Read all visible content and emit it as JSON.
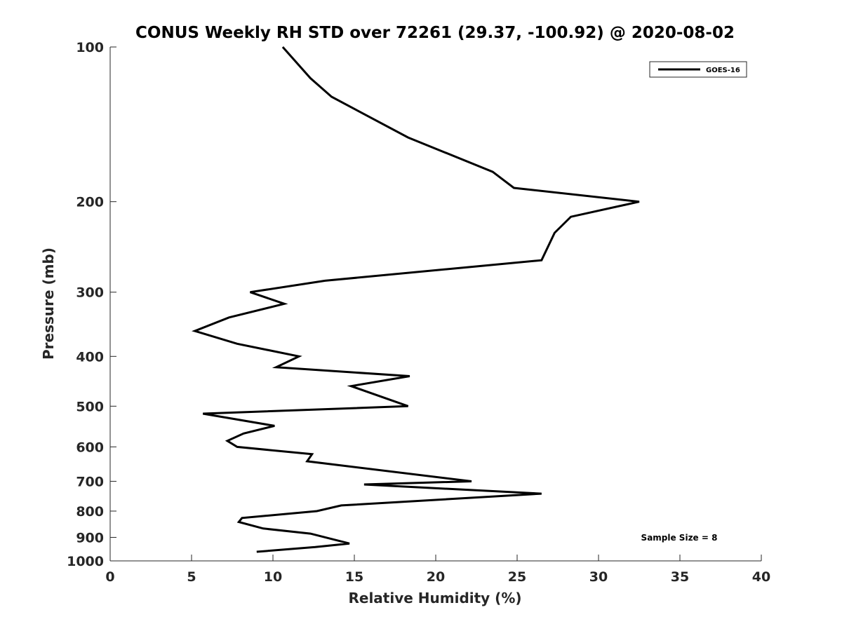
{
  "chart_data": {
    "type": "line",
    "title": "CONUS Weekly RH STD over 72261 (29.37, -100.92) @ 2020-08-02",
    "xlabel": "Relative Humidity (%)",
    "ylabel": "Pressure (mb)",
    "xlim": [
      0,
      40
    ],
    "ylim": [
      100,
      1000
    ],
    "yscale": "log",
    "y_reversed": true,
    "xticks": [
      0,
      5,
      10,
      15,
      20,
      25,
      30,
      35,
      40
    ],
    "yticks": [
      100,
      200,
      300,
      400,
      500,
      600,
      700,
      800,
      900,
      1000
    ],
    "grid": false,
    "legend_position": "top-right",
    "series": [
      {
        "name": "GOES-16",
        "color": "#000000",
        "points": [
          {
            "x": 10.6,
            "y": 100
          },
          {
            "x": 12.3,
            "y": 115
          },
          {
            "x": 13.6,
            "y": 125
          },
          {
            "x": 18.3,
            "y": 150
          },
          {
            "x": 23.5,
            "y": 175
          },
          {
            "x": 24.8,
            "y": 188
          },
          {
            "x": 32.5,
            "y": 200
          },
          {
            "x": 28.3,
            "y": 214
          },
          {
            "x": 27.3,
            "y": 230
          },
          {
            "x": 26.5,
            "y": 260
          },
          {
            "x": 13.2,
            "y": 285
          },
          {
            "x": 8.6,
            "y": 300
          },
          {
            "x": 10.7,
            "y": 316
          },
          {
            "x": 7.3,
            "y": 336
          },
          {
            "x": 5.2,
            "y": 357
          },
          {
            "x": 7.8,
            "y": 378
          },
          {
            "x": 11.6,
            "y": 400
          },
          {
            "x": 10.2,
            "y": 420
          },
          {
            "x": 18.4,
            "y": 437
          },
          {
            "x": 14.8,
            "y": 457
          },
          {
            "x": 18.3,
            "y": 500
          },
          {
            "x": 5.7,
            "y": 517
          },
          {
            "x": 10.1,
            "y": 546
          },
          {
            "x": 8.2,
            "y": 565
          },
          {
            "x": 7.2,
            "y": 584
          },
          {
            "x": 7.8,
            "y": 600
          },
          {
            "x": 12.4,
            "y": 620
          },
          {
            "x": 12.1,
            "y": 640
          },
          {
            "x": 22.2,
            "y": 700
          },
          {
            "x": 15.6,
            "y": 710
          },
          {
            "x": 26.5,
            "y": 740
          },
          {
            "x": 14.2,
            "y": 780
          },
          {
            "x": 12.7,
            "y": 800
          },
          {
            "x": 8.1,
            "y": 825
          },
          {
            "x": 7.9,
            "y": 840
          },
          {
            "x": 9.4,
            "y": 865
          },
          {
            "x": 12.3,
            "y": 885
          },
          {
            "x": 14.7,
            "y": 925
          },
          {
            "x": 12.6,
            "y": 940
          },
          {
            "x": 9.0,
            "y": 960
          }
        ]
      }
    ],
    "annotations": [
      {
        "text": "Sample Size = 8",
        "position": "bottom-right"
      }
    ]
  }
}
